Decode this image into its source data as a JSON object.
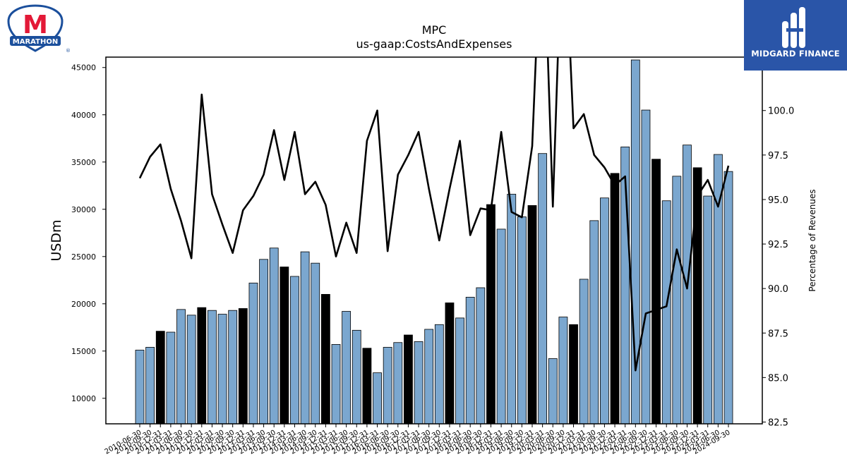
{
  "logos": {
    "left_brand": "MARATHON",
    "left_mark": "M",
    "left_reg": "®",
    "right_brand": "MIDGARD FINANCE"
  },
  "colors": {
    "bar_default": "#7ba7cf",
    "bar_q4": "#000000",
    "line": "#000000",
    "marathon_red": "#e31937",
    "marathon_blue": "#1b4f9c",
    "midgard_blue": "#2a55a8"
  },
  "chart_data": {
    "type": "bar",
    "title": "MPC",
    "subtitle": "us-gaap:CostsAndExpenses",
    "ylabel": "USDm",
    "y2label": "Percentage of Revenues",
    "ylim": [
      7300,
      46100
    ],
    "y2lim": [
      82.4,
      103.0
    ],
    "yticks": [
      10000,
      15000,
      20000,
      25000,
      30000,
      35000,
      40000,
      45000
    ],
    "y2ticks": [
      "82.5",
      "85.0",
      "87.5",
      "90.0",
      "92.5",
      "95.0",
      "97.5",
      "100.0"
    ],
    "y2tick_values": [
      82.5,
      85.0,
      87.5,
      90.0,
      92.5,
      95.0,
      97.5,
      100.0
    ],
    "categories": [
      "2010-06-30",
      "2010-09-30",
      "2010-12-31",
      "2011-03-31",
      "2011-06-30",
      "2011-09-30",
      "2011-12-31",
      "2012-03-31",
      "2012-06-30",
      "2012-09-30",
      "2012-12-31",
      "2013-03-31",
      "2013-06-30",
      "2013-09-30",
      "2013-12-31",
      "2014-03-31",
      "2014-06-30",
      "2014-09-30",
      "2014-12-31",
      "2015-03-31",
      "2015-06-30",
      "2015-09-30",
      "2015-12-31",
      "2016-03-31",
      "2016-06-30",
      "2016-09-30",
      "2016-12-31",
      "2017-03-31",
      "2017-06-30",
      "2017-09-30",
      "2017-12-31",
      "2018-03-31",
      "2018-06-30",
      "2018-09-30",
      "2018-12-31",
      "2019-03-31",
      "2019-06-30",
      "2019-09-30",
      "2019-12-31",
      "2020-03-31",
      "2020-06-30",
      "2020-09-30",
      "2020-12-31",
      "2021-03-31",
      "2021-06-30",
      "2021-09-30",
      "2021-12-31",
      "2022-03-31",
      "2022-06-30",
      "2022-09-30",
      "2022-12-31",
      "2023-03-31",
      "2023-06-30",
      "2023-09-30",
      "2023-12-31",
      "2024-03-31",
      "2024-06-30",
      "2024-09-30"
    ],
    "series": [
      {
        "kind": "bar",
        "values": [
          15100,
          15400,
          17100,
          17000,
          19400,
          18800,
          19600,
          19300,
          18900,
          19300,
          19500,
          22200,
          24700,
          25900,
          23900,
          22900,
          25500,
          24300,
          21000,
          15700,
          19200,
          17200,
          15300,
          12700,
          15400,
          15900,
          16700,
          16000,
          17300,
          17800,
          20100,
          18500,
          20700,
          21700,
          30500,
          27900,
          31600,
          29200,
          30400,
          35900,
          14200,
          18600,
          17800,
          22600,
          28800,
          31200,
          33800,
          36600,
          45800,
          40500,
          35300,
          30900,
          33500,
          36800,
          34400,
          31400,
          35800,
          34000
        ]
      },
      {
        "kind": "line",
        "axis": "right",
        "values": [
          96.2,
          97.4,
          98.1,
          95.6,
          93.8,
          91.7,
          100.9,
          95.3,
          93.6,
          92.0,
          94.4,
          95.2,
          96.4,
          98.9,
          96.1,
          98.8,
          95.3,
          96.0,
          94.7,
          91.8,
          93.7,
          92.0,
          98.3,
          100.0,
          92.1,
          96.4,
          97.5,
          98.8,
          95.6,
          92.7,
          95.6,
          98.3,
          93.0,
          94.5,
          94.4,
          98.8,
          94.3,
          94.0,
          98.0,
          112.0,
          94.6,
          112.0,
          99.0,
          99.8,
          97.5,
          96.8,
          95.8,
          96.3,
          85.4,
          88.6,
          88.8,
          89.0,
          92.2,
          90.0,
          95.2,
          96.1,
          94.6,
          96.9
        ]
      }
    ],
    "bar_colors": [
      "#7ba7cf",
      "#7ba7cf",
      "#000000",
      "#7ba7cf",
      "#7ba7cf",
      "#7ba7cf",
      "#000000",
      "#7ba7cf",
      "#7ba7cf",
      "#7ba7cf",
      "#000000",
      "#7ba7cf",
      "#7ba7cf",
      "#7ba7cf",
      "#000000",
      "#7ba7cf",
      "#7ba7cf",
      "#7ba7cf",
      "#000000",
      "#7ba7cf",
      "#7ba7cf",
      "#7ba7cf",
      "#000000",
      "#7ba7cf",
      "#7ba7cf",
      "#7ba7cf",
      "#000000",
      "#7ba7cf",
      "#7ba7cf",
      "#7ba7cf",
      "#000000",
      "#7ba7cf",
      "#7ba7cf",
      "#7ba7cf",
      "#000000",
      "#7ba7cf",
      "#7ba7cf",
      "#7ba7cf",
      "#000000",
      "#7ba7cf",
      "#7ba7cf",
      "#7ba7cf",
      "#000000",
      "#7ba7cf",
      "#7ba7cf",
      "#7ba7cf",
      "#000000",
      "#7ba7cf",
      "#7ba7cf",
      "#7ba7cf",
      "#000000",
      "#7ba7cf",
      "#7ba7cf",
      "#7ba7cf",
      "#000000",
      "#7ba7cf",
      "#7ba7cf",
      "#7ba7cf"
    ],
    "grid": false,
    "legend": "none"
  }
}
